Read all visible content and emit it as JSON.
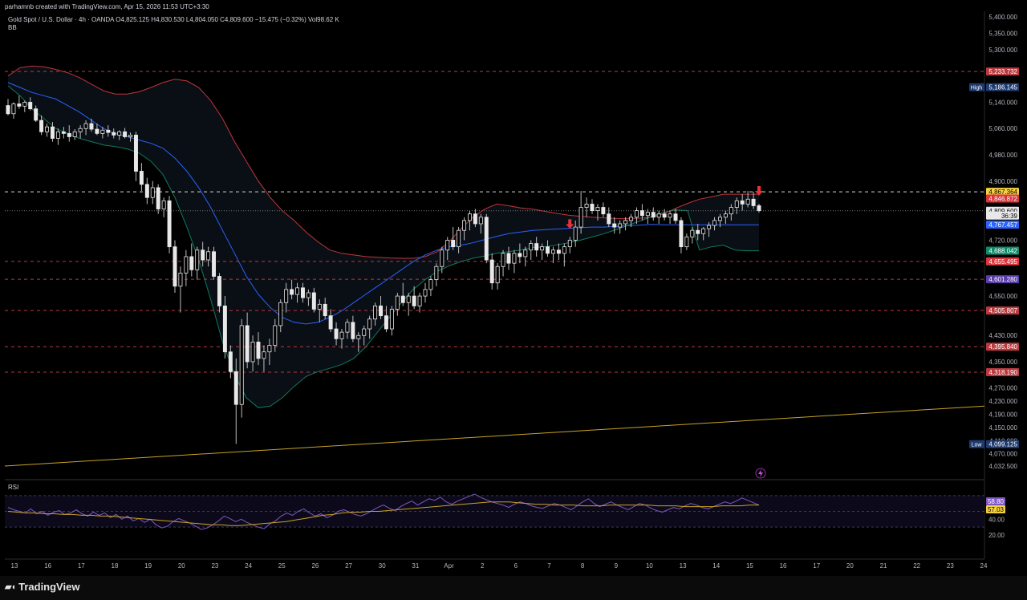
{
  "header": {
    "creator": "parhamnb created with TradingView.com, Apr 15, 2026 11:53 UTC+3:30",
    "symbol_line": "Gold Spot / U.S. Dollar · 4h · OANDA  O4,825.125  H4,830.530  L4,804.050  C4,809.600  −15.475 (−0.32%)  Vol98.62 K",
    "indicator": "BB"
  },
  "rsi_panel": {
    "label": "RSI"
  },
  "footer": {
    "brand": "TradingView",
    "brand_icon": "tradingview-logo-icon"
  },
  "colors": {
    "bull": "#e8e8e8",
    "bear": "#e8e8e8",
    "upper_band": "#c0353a",
    "mid_band": "#2962ff",
    "lower_band": "#0f7a5c",
    "band_fill": "#0a0f16",
    "level_line": "#b83a3f",
    "trendline": "#c9a227",
    "rsi": "#7e57c2",
    "rsi_ma": "#c9a227",
    "arrow": "#e0353b"
  },
  "chart_data": {
    "type": "candlestick",
    "price_axis": {
      "ticks": [
        "5,400.000",
        "5,350.000",
        "5,300.000",
        "5,140.000",
        "5,060.000",
        "4,980.000",
        "4,900.000",
        "4,720.000",
        "4,550.000",
        "4,430.000",
        "4,350.000",
        "4,270.000",
        "4,230.000",
        "4,190.000",
        "4,150.000",
        "4,110.000",
        "4,070.000",
        "4,032.500"
      ],
      "labels": [
        {
          "text": "5,233.732",
          "value": 5233.732,
          "bg": "#b83a3f",
          "color": "#ffffff"
        },
        {
          "text": "5,186.145",
          "value": 5186.145,
          "bg": "#1e3a6e",
          "color": "#ffffff",
          "tag": "High"
        },
        {
          "text": "4,867.364",
          "value": 4867.364,
          "bg": "#f5d142",
          "color": "#000000"
        },
        {
          "text": "4,846.872",
          "value": 4846.872,
          "bg": "#d9363e",
          "color": "#ffffff"
        },
        {
          "text": "4,809.600",
          "value": 4809.6,
          "bg": "#e8e8e8",
          "color": "#000000"
        },
        {
          "text": "36:39",
          "value": 4795,
          "bg": "#e8e8e8",
          "color": "#000000"
        },
        {
          "text": "4,767.457",
          "value": 4767.457,
          "bg": "#2962ff",
          "color": "#ffffff"
        },
        {
          "text": "4,688.042",
          "value": 4688.042,
          "bg": "#0f8a6b",
          "color": "#ffffff"
        },
        {
          "text": "4,655.495",
          "value": 4655.495,
          "bg": "#d9363e",
          "color": "#ffffff"
        },
        {
          "text": "4,601.280",
          "value": 4601.28,
          "bg": "#5b3fa8",
          "color": "#ffffff"
        },
        {
          "text": "4,505.807",
          "value": 4505.807,
          "bg": "#b83a3f",
          "color": "#ffffff"
        },
        {
          "text": "4,395.840",
          "value": 4395.84,
          "bg": "#b83a3f",
          "color": "#ffffff"
        },
        {
          "text": "4,318.190",
          "value": 4318.19,
          "bg": "#b83a3f",
          "color": "#ffffff"
        },
        {
          "text": "4,099.125",
          "value": 4099.125,
          "bg": "#1e3a6e",
          "color": "#ffffff",
          "tag": "Low"
        }
      ]
    },
    "horizontal_levels": [
      5233.732,
      4867.364,
      4655.495,
      4601.28,
      4505.807,
      4395.84,
      4318.19
    ],
    "x_axis_labels": [
      "13",
      "16",
      "17",
      "18",
      "19",
      "20",
      "23",
      "24",
      "25",
      "26",
      "27",
      "30",
      "31",
      "Apr",
      "2",
      "6",
      "7",
      "8",
      "9",
      "10",
      "13",
      "14",
      "15",
      "16",
      "17",
      "20",
      "21",
      "22",
      "23",
      "24"
    ],
    "rsi": {
      "value_labels": [
        {
          "text": "58.80",
          "bg": "#7e57c2"
        },
        {
          "text": "57.03",
          "bg": "#f5d142"
        }
      ],
      "ticks": [
        "40.00",
        "20.00"
      ]
    },
    "candles": [
      [
        5130,
        5150,
        5100,
        5105
      ],
      [
        5105,
        5140,
        5090,
        5135
      ],
      [
        5135,
        5160,
        5120,
        5128
      ],
      [
        5128,
        5145,
        5110,
        5140
      ],
      [
        5140,
        5155,
        5115,
        5120
      ],
      [
        5120,
        5130,
        5080,
        5085
      ],
      [
        5085,
        5100,
        5040,
        5050
      ],
      [
        5050,
        5075,
        5035,
        5065
      ],
      [
        5065,
        5080,
        5020,
        5030
      ],
      [
        5030,
        5060,
        5010,
        5050
      ],
      [
        5050,
        5065,
        5030,
        5045
      ],
      [
        5045,
        5070,
        5020,
        5035
      ],
      [
        5035,
        5058,
        5025,
        5050
      ],
      [
        5050,
        5070,
        5030,
        5060
      ],
      [
        5060,
        5085,
        5040,
        5075
      ],
      [
        5075,
        5090,
        5050,
        5058
      ],
      [
        5058,
        5075,
        5040,
        5045
      ],
      [
        5045,
        5065,
        5030,
        5055
      ],
      [
        5055,
        5070,
        5035,
        5048
      ],
      [
        5048,
        5060,
        5030,
        5040
      ],
      [
        5040,
        5055,
        5025,
        5050
      ],
      [
        5050,
        5062,
        5030,
        5035
      ],
      [
        5035,
        5048,
        5020,
        5040
      ],
      [
        5040,
        5050,
        4900,
        4930
      ],
      [
        4930,
        4955,
        4870,
        4890
      ],
      [
        4890,
        4910,
        4830,
        4850
      ],
      [
        4850,
        4900,
        4830,
        4880
      ],
      [
        4880,
        4890,
        4800,
        4815
      ],
      [
        4815,
        4850,
        4790,
        4840
      ],
      [
        4840,
        4855,
        4680,
        4700
      ],
      [
        4700,
        4720,
        4560,
        4580
      ],
      [
        4580,
        4640,
        4500,
        4620
      ],
      [
        4620,
        4690,
        4580,
        4670
      ],
      [
        4670,
        4710,
        4610,
        4630
      ],
      [
        4630,
        4700,
        4600,
        4690
      ],
      [
        4690,
        4715,
        4640,
        4660
      ],
      [
        4660,
        4700,
        4640,
        4685
      ],
      [
        4685,
        4700,
        4600,
        4610
      ],
      [
        4610,
        4620,
        4500,
        4520
      ],
      [
        4520,
        4550,
        4360,
        4380
      ],
      [
        4380,
        4400,
        4300,
        4320
      ],
      [
        4320,
        4360,
        4100,
        4220
      ],
      [
        4220,
        4480,
        4180,
        4460
      ],
      [
        4460,
        4500,
        4330,
        4350
      ],
      [
        4350,
        4430,
        4320,
        4410
      ],
      [
        4410,
        4440,
        4340,
        4360
      ],
      [
        4360,
        4400,
        4320,
        4380
      ],
      [
        4380,
        4420,
        4340,
        4400
      ],
      [
        4400,
        4480,
        4380,
        4460
      ],
      [
        4460,
        4540,
        4440,
        4530
      ],
      [
        4530,
        4590,
        4500,
        4570
      ],
      [
        4570,
        4600,
        4540,
        4555
      ],
      [
        4555,
        4590,
        4530,
        4575
      ],
      [
        4575,
        4590,
        4530,
        4545
      ],
      [
        4545,
        4570,
        4520,
        4560
      ],
      [
        4560,
        4575,
        4500,
        4510
      ],
      [
        4510,
        4540,
        4470,
        4525
      ],
      [
        4525,
        4545,
        4480,
        4490
      ],
      [
        4490,
        4510,
        4440,
        4450
      ],
      [
        4450,
        4470,
        4400,
        4420
      ],
      [
        4420,
        4450,
        4390,
        4440
      ],
      [
        4440,
        4480,
        4420,
        4470
      ],
      [
        4470,
        4490,
        4410,
        4420
      ],
      [
        4420,
        4440,
        4380,
        4430
      ],
      [
        4430,
        4460,
        4400,
        4450
      ],
      [
        4450,
        4490,
        4420,
        4480
      ],
      [
        4480,
        4530,
        4460,
        4520
      ],
      [
        4520,
        4550,
        4480,
        4490
      ],
      [
        4490,
        4520,
        4440,
        4450
      ],
      [
        4450,
        4520,
        4430,
        4510
      ],
      [
        4510,
        4560,
        4490,
        4550
      ],
      [
        4550,
        4590,
        4520,
        4530
      ],
      [
        4530,
        4560,
        4490,
        4550
      ],
      [
        4550,
        4580,
        4510,
        4520
      ],
      [
        4520,
        4560,
        4500,
        4550
      ],
      [
        4550,
        4590,
        4530,
        4570
      ],
      [
        4570,
        4610,
        4550,
        4600
      ],
      [
        4600,
        4650,
        4580,
        4640
      ],
      [
        4640,
        4700,
        4620,
        4690
      ],
      [
        4690,
        4730,
        4660,
        4720
      ],
      [
        4720,
        4760,
        4690,
        4700
      ],
      [
        4700,
        4760,
        4680,
        4750
      ],
      [
        4750,
        4790,
        4720,
        4780
      ],
      [
        4780,
        4810,
        4750,
        4800
      ],
      [
        4800,
        4815,
        4760,
        4770
      ],
      [
        4770,
        4800,
        4740,
        4790
      ],
      [
        4790,
        4800,
        4650,
        4660
      ],
      [
        4660,
        4680,
        4570,
        4590
      ],
      [
        4590,
        4650,
        4570,
        4640
      ],
      [
        4640,
        4690,
        4610,
        4680
      ],
      [
        4680,
        4700,
        4630,
        4650
      ],
      [
        4650,
        4690,
        4620,
        4680
      ],
      [
        4680,
        4710,
        4650,
        4670
      ],
      [
        4670,
        4700,
        4640,
        4690
      ],
      [
        4690,
        4720,
        4660,
        4710
      ],
      [
        4710,
        4730,
        4670,
        4690
      ],
      [
        4690,
        4710,
        4660,
        4700
      ],
      [
        4700,
        4720,
        4670,
        4680
      ],
      [
        4680,
        4700,
        4650,
        4690
      ],
      [
        4690,
        4710,
        4660,
        4680
      ],
      [
        4680,
        4710,
        4640,
        4700
      ],
      [
        4700,
        4730,
        4680,
        4720
      ],
      [
        4720,
        4780,
        4700,
        4760
      ],
      [
        4760,
        4870,
        4740,
        4820
      ],
      [
        4820,
        4850,
        4790,
        4830
      ],
      [
        4830,
        4845,
        4800,
        4810
      ],
      [
        4810,
        4830,
        4780,
        4820
      ],
      [
        4820,
        4835,
        4790,
        4800
      ],
      [
        4800,
        4820,
        4760,
        4770
      ],
      [
        4770,
        4790,
        4740,
        4760
      ],
      [
        4760,
        4780,
        4740,
        4770
      ],
      [
        4770,
        4790,
        4750,
        4780
      ],
      [
        4780,
        4800,
        4760,
        4790
      ],
      [
        4790,
        4820,
        4770,
        4810
      ],
      [
        4810,
        4830,
        4780,
        4795
      ],
      [
        4795,
        4815,
        4770,
        4805
      ],
      [
        4805,
        4820,
        4780,
        4790
      ],
      [
        4790,
        4810,
        4770,
        4800
      ],
      [
        4800,
        4815,
        4780,
        4790
      ],
      [
        4790,
        4810,
        4770,
        4800
      ],
      [
        4800,
        4815,
        4770,
        4780
      ],
      [
        4780,
        4790,
        4680,
        4700
      ],
      [
        4700,
        4740,
        4690,
        4730
      ],
      [
        4730,
        4760,
        4710,
        4750
      ],
      [
        4750,
        4770,
        4720,
        4740
      ],
      [
        4740,
        4760,
        4720,
        4755
      ],
      [
        4755,
        4775,
        4730,
        4765
      ],
      [
        4765,
        4790,
        4750,
        4780
      ],
      [
        4780,
        4800,
        4760,
        4790
      ],
      [
        4790,
        4810,
        4770,
        4800
      ],
      [
        4800,
        4830,
        4780,
        4820
      ],
      [
        4820,
        4850,
        4800,
        4840
      ],
      [
        4840,
        4860,
        4810,
        4830
      ],
      [
        4830,
        4870,
        4820,
        4845
      ],
      [
        4845,
        4868,
        4815,
        4825
      ],
      [
        4825,
        4831,
        4804,
        4810
      ]
    ],
    "bb_upper": [
      5220,
      5245,
      5250,
      5248,
      5240,
      5230,
      5215,
      5195,
      5175,
      5165,
      5165,
      5172,
      5185,
      5200,
      5210,
      5205,
      5185,
      5145,
      5090,
      5020,
      4960,
      4900,
      4850,
      4810,
      4780,
      4745,
      4715,
      4690,
      4680,
      4675,
      4670,
      4668,
      4666,
      4665,
      4665,
      4670,
      4685,
      4715,
      4755,
      4790,
      4815,
      4830,
      4825,
      4818,
      4815,
      4808,
      4802,
      4796,
      4793,
      4790,
      4788,
      4786,
      4786,
      4787,
      4790,
      4800,
      4817,
      4832,
      4845,
      4852,
      4860,
      4860,
      4860,
      4860
    ],
    "bb_mid": [
      5200,
      5185,
      5170,
      5160,
      5150,
      5130,
      5110,
      5085,
      5060,
      5045,
      5035,
      5025,
      5015,
      5000,
      4970,
      4930,
      4880,
      4820,
      4750,
      4680,
      4610,
      4555,
      4515,
      4485,
      4470,
      4465,
      4470,
      4485,
      4505,
      4530,
      4555,
      4580,
      4605,
      4630,
      4655,
      4675,
      4690,
      4700,
      4705,
      4712,
      4722,
      4732,
      4740,
      4745,
      4750,
      4752,
      4754,
      4756,
      4758,
      4760,
      4760,
      4762,
      4764,
      4766,
      4768,
      4767,
      4767,
      4767,
      4767,
      4767,
      4767,
      4767,
      4767,
      4767
    ],
    "bb_lower": [
      5190,
      5160,
      5120,
      5090,
      5060,
      5045,
      5030,
      5020,
      5010,
      5005,
      4998,
      4985,
      4960,
      4920,
      4850,
      4760,
      4660,
      4540,
      4410,
      4310,
      4240,
      4210,
      4215,
      4240,
      4275,
      4305,
      4320,
      4330,
      4342,
      4360,
      4395,
      4440,
      4485,
      4530,
      4570,
      4600,
      4625,
      4642,
      4655,
      4665,
      4672,
      4680,
      4685,
      4690,
      4698,
      4700,
      4705,
      4712,
      4720,
      4730,
      4740,
      4752,
      4765,
      4778,
      4792,
      4805,
      4812,
      4810,
      4690,
      4700,
      4705,
      4690,
      4688,
      4688
    ],
    "trendline": {
      "start": 4032.5,
      "end": 4215
    },
    "arrows_at_candle": [
      101,
      135
    ],
    "rsi_values": [
      55,
      52,
      50,
      48,
      53,
      47,
      50,
      45,
      49,
      51,
      46,
      48,
      52,
      47,
      44,
      49,
      45,
      48,
      42,
      46,
      40,
      44,
      38,
      41,
      36,
      40,
      33,
      29,
      31,
      37,
      41,
      38,
      35,
      31,
      27,
      29,
      33,
      38,
      44,
      41,
      37,
      40,
      36,
      33,
      30,
      28,
      34,
      38,
      44,
      48,
      45,
      50,
      53,
      48,
      44,
      47,
      42,
      45,
      50,
      52,
      49,
      46,
      44,
      47,
      51,
      55,
      58,
      54,
      51,
      56,
      60,
      63,
      58,
      62,
      66,
      64,
      68,
      62,
      59,
      63,
      66,
      69,
      72,
      68,
      65,
      62,
      60,
      58,
      55,
      59,
      62,
      60,
      57,
      55,
      54,
      57,
      60,
      58,
      55,
      52,
      57,
      62,
      66,
      60,
      56,
      59,
      62,
      58,
      55,
      52,
      56,
      60,
      58,
      54,
      51,
      49,
      52,
      55,
      53,
      57,
      60,
      58,
      55,
      53,
      56,
      59,
      62,
      60,
      63,
      67,
      64,
      61,
      58
    ],
    "rsi_ma": [
      50,
      49,
      48,
      48,
      47,
      47,
      46,
      46,
      45,
      45,
      44,
      44,
      43,
      42,
      41,
      40,
      39,
      38,
      37,
      36,
      35,
      34,
      33,
      33,
      32,
      32,
      33,
      34,
      35,
      36,
      37,
      39,
      41,
      43,
      45,
      46,
      48,
      49,
      49,
      50,
      50,
      51,
      52,
      53,
      54,
      55,
      56,
      57,
      58,
      59,
      60,
      61,
      62,
      62,
      62,
      61,
      60,
      59,
      59,
      58,
      58,
      58,
      57,
      57,
      57,
      58,
      58,
      58,
      58,
      58,
      57,
      57,
      57,
      56,
      56,
      56,
      56,
      57,
      57,
      57,
      58,
      58
    ]
  }
}
